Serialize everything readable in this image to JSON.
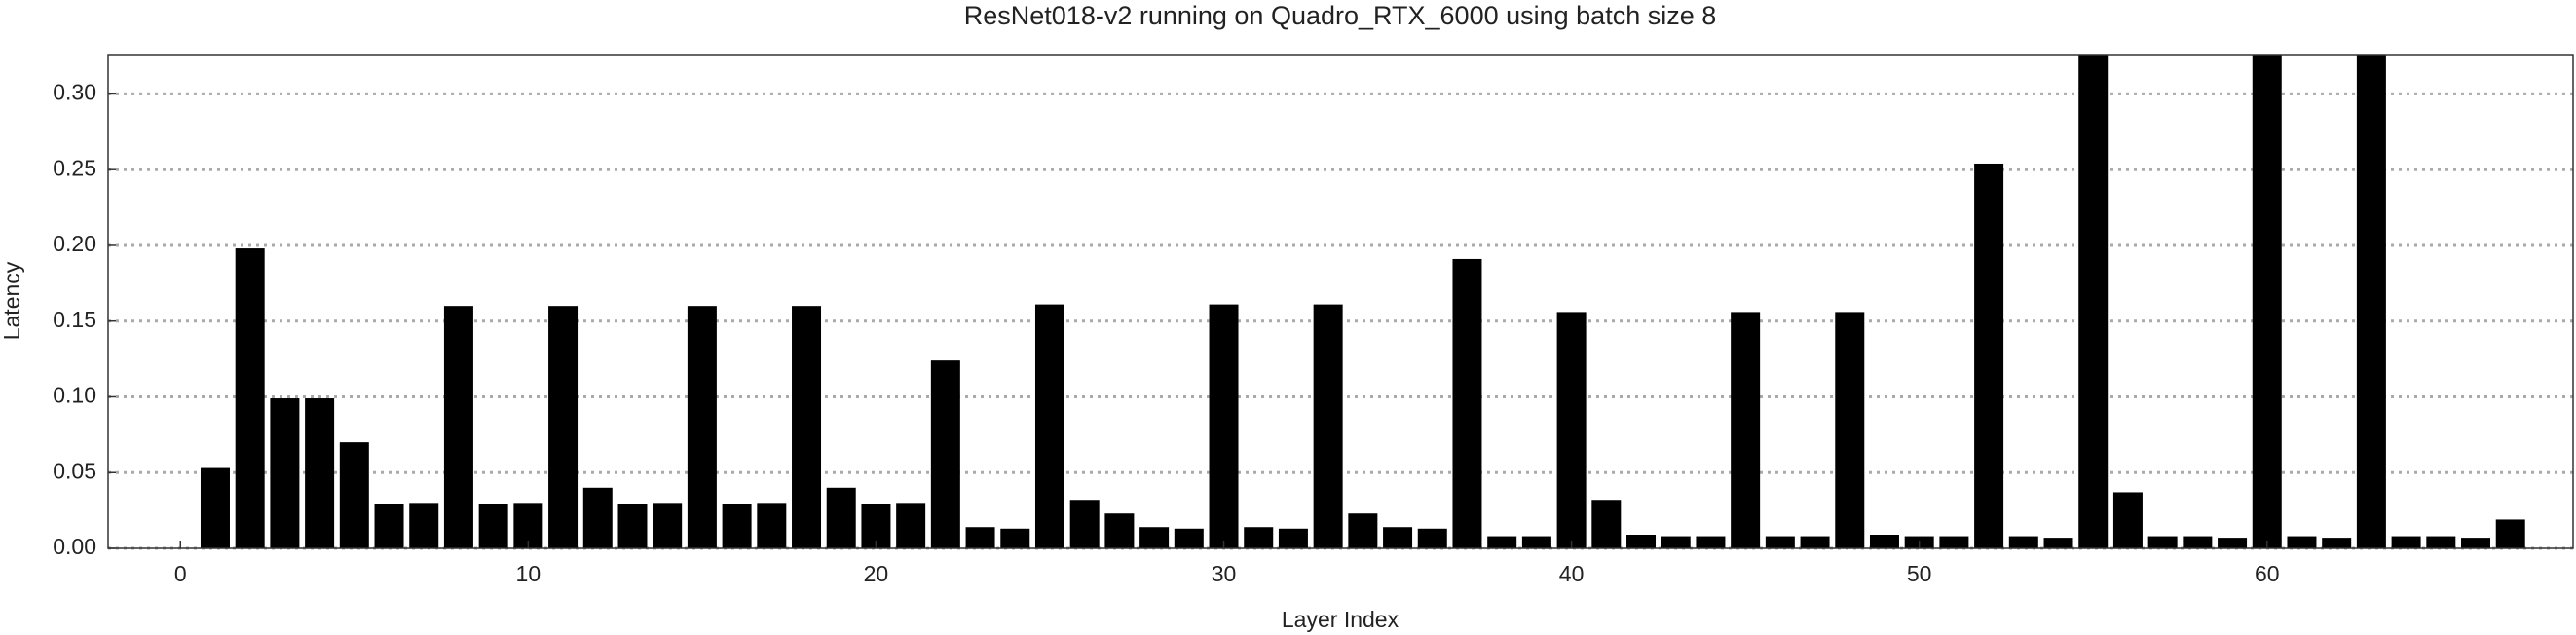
{
  "chart_data": {
    "type": "bar",
    "title": "ResNet018-v2 running on Quadro_RTX_6000 using batch size 8",
    "x_label": "Layer Index",
    "y_label": "Latency",
    "x": [
      1,
      2,
      3,
      4,
      5,
      6,
      7,
      8,
      9,
      10,
      11,
      12,
      13,
      14,
      15,
      16,
      17,
      18,
      19,
      20,
      21,
      22,
      23,
      24,
      25,
      26,
      27,
      28,
      29,
      30,
      31,
      32,
      33,
      34,
      35,
      36,
      37,
      38,
      39,
      40,
      41,
      42,
      43,
      44,
      45,
      46,
      47,
      48,
      49,
      50,
      51,
      52,
      53,
      54,
      55,
      56,
      57,
      58,
      59,
      60,
      61,
      62,
      63,
      64,
      65,
      66,
      67
    ],
    "values": [
      0.053,
      0.198,
      0.099,
      0.099,
      0.07,
      0.029,
      0.03,
      0.16,
      0.029,
      0.03,
      0.16,
      0.04,
      0.029,
      0.03,
      0.16,
      0.029,
      0.03,
      0.16,
      0.04,
      0.029,
      0.03,
      0.124,
      0.014,
      0.013,
      0.161,
      0.032,
      0.023,
      0.014,
      0.013,
      0.161,
      0.014,
      0.013,
      0.161,
      0.023,
      0.014,
      0.013,
      0.191,
      0.008,
      0.008,
      0.156,
      0.032,
      0.009,
      0.008,
      0.008,
      0.156,
      0.008,
      0.008,
      0.156,
      0.009,
      0.008,
      0.008,
      0.254,
      0.008,
      0.007,
      0.34,
      0.037,
      0.008,
      0.008,
      0.007,
      0.34,
      0.008,
      0.007,
      0.34,
      0.008,
      0.008,
      0.007,
      0.019
    ],
    "color": "#000000",
    "xlim": [
      -2.08,
      68.8
    ],
    "xticks": [
      0,
      10,
      20,
      30,
      40,
      50,
      60
    ],
    "ylim": [
      0,
      0.326
    ],
    "yticks": [
      {
        "value": 0,
        "label": "0.00"
      },
      {
        "value": 0.05,
        "label": "0.05"
      },
      {
        "value": 0.1,
        "label": "0.10"
      },
      {
        "value": 0.15,
        "label": "0.15"
      },
      {
        "value": 0.2,
        "label": "0.20"
      },
      {
        "value": 0.25,
        "label": "0.25"
      },
      {
        "value": 0.3,
        "label": "0.30"
      }
    ],
    "grid": true
  }
}
